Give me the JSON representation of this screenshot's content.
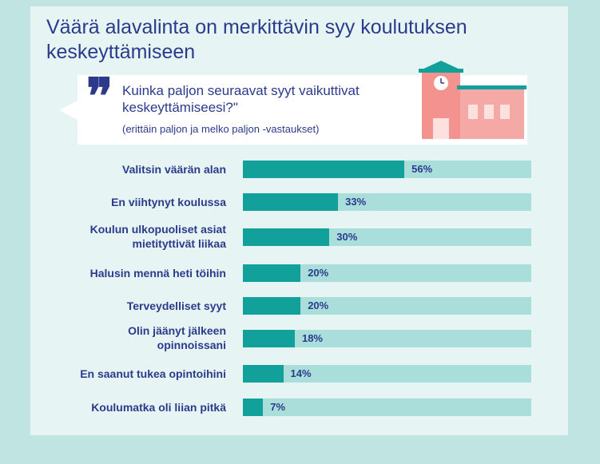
{
  "title": "Väärä alavalinta on merkittävin syy koulutuksen keskeyttämiseen",
  "quote_mark": "❞",
  "question": "Kuinka paljon seuraavat syyt vaikuttivat keskeyttämiseesi?\"",
  "note": "(erittäin paljon ja melko paljon -vastaukset)",
  "icons": {
    "illustration": "school-building-icon"
  },
  "colors": {
    "title": "#2c3a8c",
    "fill": "#12a09a",
    "track": "#a9dedb",
    "background": "#bfe4e2",
    "card": "#e6f5f4"
  },
  "chart_data": {
    "type": "bar",
    "orientation": "horizontal",
    "categories": [
      "Valitsin väärän alan",
      "En viihtynyt koulussa",
      "Koulun ulkopuoliset asiat\nmietityttivät liikaa",
      "Halusin mennä heti töihin",
      "Terveydelliset syyt",
      "Olin jäänyt jälkeen\nopinnoissani",
      "En saanut tukea opintoihini",
      "Koulumatka oli liian pitkä"
    ],
    "values": [
      56,
      33,
      30,
      20,
      20,
      18,
      14,
      7
    ],
    "value_labels": [
      "56%",
      "33%",
      "30%",
      "20%",
      "20%",
      "18%",
      "14%",
      "7%"
    ],
    "xlim": [
      0,
      100
    ],
    "unit": "%"
  }
}
